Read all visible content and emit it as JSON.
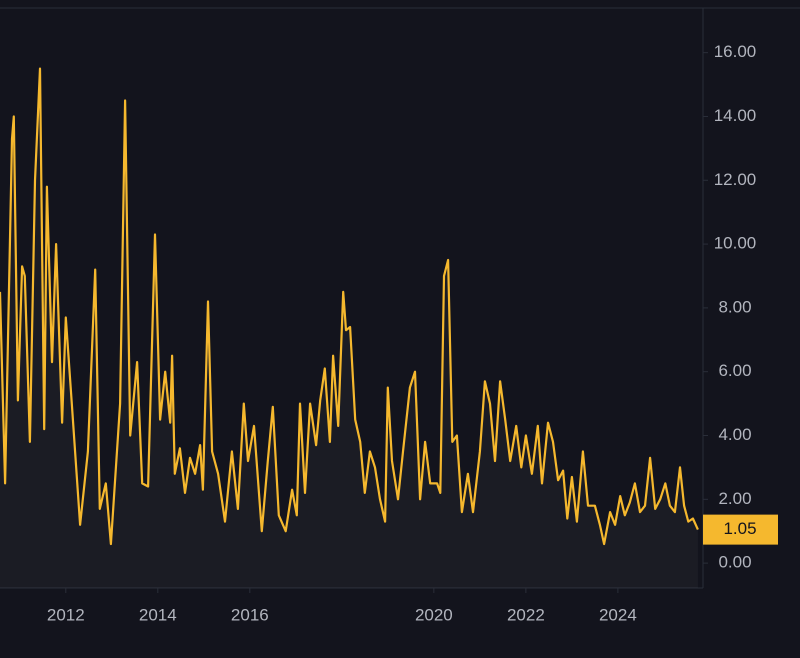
{
  "chart_data": {
    "type": "line",
    "x": [
      2010.57,
      2010.68,
      2010.83,
      2010.87,
      2010.96,
      2011.05,
      2011.11,
      2011.22,
      2011.33,
      2011.44,
      2011.53,
      2011.59,
      2011.7,
      2011.79,
      2011.92,
      2012.0,
      2012.13,
      2012.31,
      2012.48,
      2012.64,
      2012.74,
      2012.87,
      2012.98,
      2013.18,
      2013.29,
      2013.4,
      2013.55,
      2013.66,
      2013.79,
      2013.94,
      2014.05,
      2014.16,
      2014.27,
      2014.31,
      2014.37,
      2014.48,
      2014.59,
      2014.7,
      2014.81,
      2014.92,
      2014.98,
      2015.09,
      2015.18,
      2015.31,
      2015.46,
      2015.61,
      2015.74,
      2015.87,
      2015.96,
      2016.09,
      2016.26,
      2016.39,
      2016.5,
      2016.63,
      2016.78,
      2016.92,
      2017.02,
      2017.09,
      2017.2,
      2017.31,
      2017.44,
      2017.53,
      2017.63,
      2017.74,
      2017.81,
      2017.92,
      2018.03,
      2018.09,
      2018.18,
      2018.29,
      2018.4,
      2018.5,
      2018.61,
      2018.72,
      2018.83,
      2018.94,
      2019.0,
      2019.09,
      2019.22,
      2019.33,
      2019.48,
      2019.59,
      2019.7,
      2019.81,
      2019.92,
      2020.07,
      2020.14,
      2020.22,
      2020.31,
      2020.4,
      2020.5,
      2020.61,
      2020.74,
      2020.85,
      2021.0,
      2021.11,
      2021.22,
      2021.33,
      2021.44,
      2021.55,
      2021.66,
      2021.79,
      2021.9,
      2022.0,
      2022.13,
      2022.26,
      2022.35,
      2022.48,
      2022.59,
      2022.7,
      2022.81,
      2022.9,
      2023.0,
      2023.11,
      2023.24,
      2023.35,
      2023.5,
      2023.61,
      2023.7,
      2023.83,
      2023.94,
      2024.05,
      2024.15,
      2024.26,
      2024.37,
      2024.48,
      2024.59,
      2024.7,
      2024.81,
      2024.92,
      2025.03,
      2025.13,
      2025.24,
      2025.35,
      2025.44,
      2025.53,
      2025.63,
      2025.74
    ],
    "series": [
      {
        "color": "#f5b82e",
        "values": [
          8.5,
          2.5,
          13.3,
          14.0,
          5.1,
          9.3,
          9.0,
          3.8,
          12.0,
          15.5,
          4.2,
          11.8,
          6.3,
          10.0,
          4.4,
          7.7,
          5.0,
          1.2,
          3.5,
          9.2,
          1.7,
          2.5,
          0.6,
          5.0,
          14.5,
          4.0,
          6.3,
          2.5,
          2.4,
          10.3,
          4.5,
          6.0,
          4.4,
          6.5,
          2.8,
          3.6,
          2.2,
          3.3,
          2.8,
          3.7,
          2.3,
          8.2,
          3.5,
          2.8,
          1.3,
          3.5,
          1.7,
          5.0,
          3.2,
          4.3,
          1.0,
          3.2,
          4.9,
          1.5,
          1.0,
          2.3,
          1.5,
          5.0,
          2.2,
          5.0,
          3.7,
          5.1,
          6.1,
          3.8,
          6.5,
          4.3,
          8.5,
          7.3,
          7.4,
          4.5,
          3.8,
          2.2,
          3.5,
          3.0,
          2.0,
          1.3,
          5.5,
          3.2,
          2.0,
          3.5,
          5.5,
          6.0,
          2.0,
          3.8,
          2.5,
          2.5,
          2.2,
          9.0,
          9.5,
          3.8,
          4.0,
          1.6,
          2.8,
          1.6,
          3.5,
          5.7,
          5.0,
          3.2,
          5.7,
          4.5,
          3.2,
          4.3,
          3.0,
          4.0,
          2.8,
          4.3,
          2.5,
          4.4,
          3.8,
          2.6,
          2.9,
          1.4,
          2.7,
          1.3,
          3.5,
          1.8,
          1.8,
          1.2,
          0.6,
          1.6,
          1.2,
          2.1,
          1.5,
          1.9,
          2.5,
          1.6,
          1.8,
          3.3,
          1.7,
          2.0,
          2.5,
          1.8,
          1.6,
          3.0,
          1.8,
          1.3,
          1.4,
          1.05
        ]
      }
    ],
    "current_value": 1.05,
    "xlim": [
      2010.57,
      2025.85
    ],
    "xticks": [
      2012,
      2014,
      2016,
      2020,
      2022,
      2024
    ],
    "ylim": [
      -0.78,
      17.4
    ],
    "yticks": [
      {
        "value": 0,
        "label": "0.00"
      },
      {
        "value": 2,
        "label": "2.00"
      },
      {
        "value": 4,
        "label": "4.00"
      },
      {
        "value": 6,
        "label": "6.00"
      },
      {
        "value": 8,
        "label": "8.00"
      },
      {
        "value": 10,
        "label": "10.00"
      },
      {
        "value": 12,
        "label": "12.00"
      },
      {
        "value": 14,
        "label": "14.00"
      },
      {
        "value": 16,
        "label": "16.00"
      }
    ],
    "grid": false
  }
}
